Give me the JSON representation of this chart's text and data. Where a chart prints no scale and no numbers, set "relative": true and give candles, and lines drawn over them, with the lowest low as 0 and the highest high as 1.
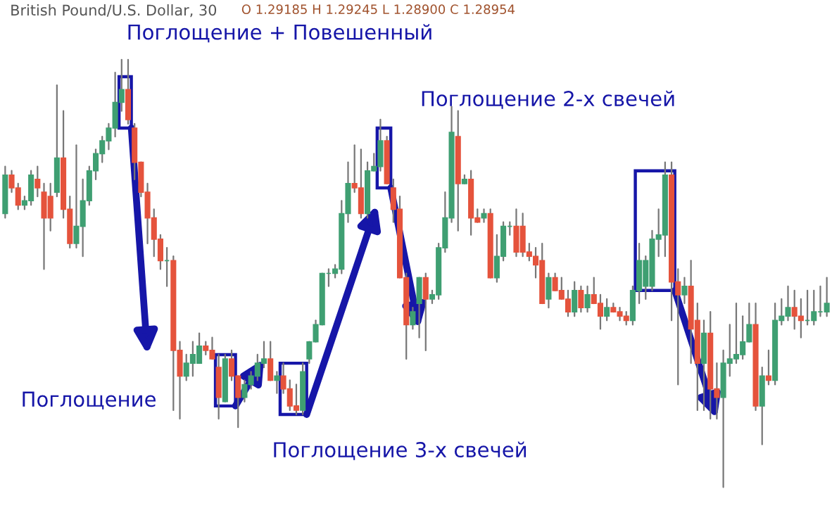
{
  "chart_data": {
    "type": "candlestick",
    "relative": true,
    "title": "British Pound/U.S. Dollar, 30",
    "subtitle": "O 1.29185 H 1.29245 L 1.28900 C 1.28954",
    "annotations": [
      "Поглощение + Повешенный",
      "Поглощение 2-х свечей",
      "Поглощение",
      "Поглощение 3-х свечей"
    ],
    "colors": [
      "#3f9f72",
      "#e5533c",
      "#e5533c",
      "#3f9f72",
      "#3f9f72",
      "#e5533c",
      "#e5533c",
      "#e5533c",
      "#3f9f72",
      "#e5533c",
      "#e5533c",
      "#3f9f72",
      "#3f9f72",
      "#3f9f72",
      "#3f9f72",
      "#3f9f72",
      "#3f9f72",
      "#3f9f72",
      "#3f9f72",
      "#e5533c",
      "#e5533c",
      "#e5533c",
      "#e5533c",
      "#e5533c",
      "#e5533c",
      "#3f9f72",
      "#e5533c",
      "#e5533c",
      "#3f9f72",
      "#3f9f72",
      "#3f9f72",
      "#e5533c",
      "#e5533c",
      "#e5533c",
      "#3f9f72",
      "#e5533c",
      "#e5533c",
      "#3f9f72",
      "#3f9f72",
      "#3f9f72",
      "#3f9f72",
      "#e5533c",
      "#3f9f72",
      "#e5533c",
      "#e5533c",
      "#e5533c",
      "#3f9f72",
      "#3f9f72",
      "#3f9f72",
      "#3f9f72",
      "#3f9f72",
      "#3f9f72",
      "#3f9f72",
      "#3f9f72",
      "#e5533c",
      "#e5533c",
      "#3f9f72",
      "#3f9f72",
      "#3f9f72",
      "#e5533c",
      "#e5533c",
      "#e5533c",
      "#e5533c",
      "#3f9f72",
      "#3f9f72",
      "#e5533c",
      "#3f9f72",
      "#3f9f72",
      "#3f9f72",
      "#3f9f72",
      "#e5533c",
      "#3f9f72",
      "#e5533c",
      "#e5533c",
      "#3f9f72",
      "#e5533c",
      "#3f9f72",
      "#3f9f72",
      "#3f9f72",
      "#e5533c",
      "#e5533c",
      "#e5533c",
      "#e5533c",
      "#e5533c",
      "#3f9f72",
      "#e5533c",
      "#e5533c",
      "#e5533c",
      "#3f9f72",
      "#e5533c",
      "#3f9f72",
      "#e5533c",
      "#e5533c",
      "#3f9f72",
      "#e5533c",
      "#e5533c",
      "#e5533c",
      "#3f9f72",
      "#3f9f72",
      "#3f9f72",
      "#3f9f72",
      "#3f9f72",
      "#3f9f72",
      "#e5533c",
      "#e5533c",
      "#3f9f72",
      "#e5533c",
      "#e5533c",
      "#3f9f72",
      "#e5533c",
      "#e5533c",
      "#3f9f72",
      "#3f9f72",
      "#3f9f72",
      "#3f9f72",
      "#3f9f72",
      "#e5533c",
      "#3f9f72",
      "#e5533c",
      "#3f9f72",
      "#3f9f72",
      "#3f9f72",
      "#e5533c",
      "#e5533c",
      "#3f9f72",
      "#3f9f72",
      "#3f9f72",
      "#3f9f72"
    ],
    "categories": [
      null,
      null,
      null,
      null,
      null,
      null,
      null,
      null,
      null,
      null,
      null,
      null,
      null,
      null,
      null,
      null,
      null,
      null,
      null,
      null,
      null,
      null,
      null,
      null,
      null,
      null,
      null,
      null,
      null,
      null,
      null,
      null,
      null,
      null,
      null,
      null,
      null,
      null,
      null,
      null,
      null,
      null,
      null,
      null,
      null,
      null,
      null,
      null,
      null,
      null,
      null,
      null,
      null,
      null,
      null,
      null,
      null,
      null,
      null,
      null,
      null,
      null,
      null,
      null,
      null,
      null,
      null,
      null,
      null,
      null,
      null,
      null,
      null,
      null,
      null,
      null,
      null,
      null,
      null,
      null,
      null,
      null,
      null,
      null,
      null,
      null,
      null,
      null,
      null,
      null,
      null,
      null,
      null,
      null,
      null,
      null,
      null,
      null,
      null,
      null,
      null,
      null,
      null,
      null,
      null,
      null,
      null,
      null,
      null,
      null,
      null,
      null,
      null,
      null,
      null,
      null,
      null,
      null,
      null,
      null,
      null,
      null,
      null,
      null,
      null,
      null,
      null,
      null
    ],
    "ohlc": [
      [
        0.64,
        0.75,
        0.63,
        0.73
      ],
      [
        0.73,
        0.74,
        0.69,
        0.7
      ],
      [
        0.7,
        0.71,
        0.65,
        0.66
      ],
      [
        0.66,
        0.68,
        0.65,
        0.67
      ],
      [
        0.67,
        0.74,
        0.66,
        0.73
      ],
      [
        0.72,
        0.75,
        0.68,
        0.7
      ],
      [
        0.69,
        0.71,
        0.51,
        0.63
      ],
      [
        0.68,
        0.71,
        0.6,
        0.63
      ],
      [
        0.69,
        0.94,
        0.68,
        0.77
      ],
      [
        0.77,
        0.88,
        0.63,
        0.65
      ],
      [
        0.65,
        0.68,
        0.56,
        0.57
      ],
      [
        0.57,
        0.8,
        0.56,
        0.61
      ],
      [
        0.61,
        0.72,
        0.54,
        0.67
      ],
      [
        0.67,
        0.75,
        0.66,
        0.74
      ],
      [
        0.74,
        0.79,
        0.72,
        0.78
      ],
      [
        0.78,
        0.82,
        0.76,
        0.81
      ],
      [
        0.81,
        0.85,
        0.79,
        0.84
      ],
      [
        0.84,
        0.97,
        0.82,
        0.9
      ],
      [
        0.9,
        1,
        0.88,
        0.93
      ],
      [
        0.93,
        1,
        0.85,
        0.86
      ],
      [
        0.84,
        0.85,
        0.72,
        0.76
      ],
      [
        0.76,
        0.76,
        0.68,
        0.69
      ],
      [
        0.69,
        0.71,
        0.57,
        0.63
      ],
      [
        0.63,
        0.65,
        0.54,
        0.58
      ],
      [
        0.58,
        0.59,
        0.51,
        0.53
      ],
      [
        0.53,
        0.56,
        0.47,
        0.53
      ],
      [
        0.53,
        0.54,
        0.18,
        0.32
      ],
      [
        0.32,
        0.34,
        0.16,
        0.26
      ],
      [
        0.26,
        0.31,
        0.25,
        0.29
      ],
      [
        0.29,
        0.34,
        0.26,
        0.31
      ],
      [
        0.29,
        0.36,
        0.29,
        0.33
      ],
      [
        0.33,
        0.34,
        0.31,
        0.32
      ],
      [
        0.32,
        0.35,
        0.3,
        0.3
      ],
      [
        0.28,
        0.31,
        0.16,
        0.21
      ],
      [
        0.2,
        0.31,
        0.2,
        0.3
      ],
      [
        0.3,
        0.32,
        0.25,
        0.26
      ],
      [
        0.26,
        0.26,
        0.14,
        0.21
      ],
      [
        0.21,
        0.25,
        0.2,
        0.24
      ],
      [
        0.24,
        0.27,
        0.23,
        0.26
      ],
      [
        0.26,
        0.31,
        0.25,
        0.29
      ],
      [
        0.29,
        0.34,
        0.28,
        0.3
      ],
      [
        0.3,
        0.34,
        0.25,
        0.25
      ],
      [
        0.25,
        0.27,
        0.22,
        0.26
      ],
      [
        0.26,
        0.29,
        0.22,
        0.23
      ],
      [
        0.23,
        0.25,
        0.18,
        0.19
      ],
      [
        0.19,
        0.24,
        0.17,
        0.18
      ],
      [
        0.18,
        0.29,
        0.17,
        0.27
      ],
      [
        0.3,
        0.34,
        0.29,
        0.34
      ],
      [
        0.34,
        0.39,
        0.34,
        0.38
      ],
      [
        0.38,
        0.5,
        0.38,
        0.5
      ],
      [
        0.5,
        0.51,
        0.47,
        0.5
      ],
      [
        0.5,
        0.52,
        0.49,
        0.51
      ],
      [
        0.51,
        0.67,
        0.5,
        0.64
      ],
      [
        0.64,
        0.76,
        0.62,
        0.71
      ],
      [
        0.71,
        0.8,
        0.69,
        0.7
      ],
      [
        0.7,
        0.79,
        0.63,
        0.64
      ],
      [
        0.64,
        0.76,
        0.63,
        0.74
      ],
      [
        0.74,
        0.78,
        0.74,
        0.75
      ],
      [
        0.75,
        0.86,
        0.74,
        0.81
      ],
      [
        0.81,
        0.82,
        0.71,
        0.71
      ],
      [
        0.7,
        0.72,
        0.62,
        0.65
      ],
      [
        0.65,
        0.68,
        0.49,
        0.49
      ],
      [
        0.49,
        0.5,
        0.3,
        0.38
      ],
      [
        0.38,
        0.42,
        0.37,
        0.41
      ],
      [
        0.43,
        0.49,
        0.35,
        0.49
      ],
      [
        0.49,
        0.5,
        0.32,
        0.44
      ],
      [
        0.44,
        0.46,
        0.43,
        0.45
      ],
      [
        0.45,
        0.57,
        0.44,
        0.56
      ],
      [
        0.56,
        0.69,
        0.55,
        0.63
      ],
      [
        0.63,
        0.89,
        0.62,
        0.83
      ],
      [
        0.82,
        0.88,
        0.6,
        0.71
      ],
      [
        0.71,
        0.73,
        0.71,
        0.72
      ],
      [
        0.72,
        0.74,
        0.59,
        0.63
      ],
      [
        0.63,
        0.65,
        0.62,
        0.62
      ],
      [
        0.63,
        0.65,
        0.62,
        0.64
      ],
      [
        0.64,
        0.65,
        0.49,
        0.49
      ],
      [
        0.49,
        0.59,
        0.48,
        0.54
      ],
      [
        0.54,
        0.62,
        0.53,
        0.61
      ],
      [
        0.61,
        0.62,
        0.59,
        0.61
      ],
      [
        0.61,
        0.65,
        0.54,
        0.55
      ],
      [
        0.61,
        0.64,
        0.54,
        0.55
      ],
      [
        0.55,
        0.57,
        0.53,
        0.54
      ],
      [
        0.54,
        0.56,
        0.49,
        0.52
      ],
      [
        0.53,
        0.57,
        0.43,
        0.43
      ],
      [
        0.44,
        0.5,
        0.42,
        0.49
      ],
      [
        0.49,
        0.5,
        0.46,
        0.46
      ],
      [
        0.46,
        0.49,
        0.44,
        0.44
      ],
      [
        0.44,
        0.46,
        0.4,
        0.41
      ],
      [
        0.41,
        0.48,
        0.4,
        0.46
      ],
      [
        0.46,
        0.47,
        0.41,
        0.42
      ],
      [
        0.42,
        0.47,
        0.41,
        0.45
      ],
      [
        0.45,
        0.49,
        0.43,
        0.43
      ],
      [
        0.43,
        0.45,
        0.37,
        0.4
      ],
      [
        0.4,
        0.44,
        0.39,
        0.42
      ],
      [
        0.42,
        0.43,
        0.41,
        0.41
      ],
      [
        0.41,
        0.42,
        0.39,
        0.4
      ],
      [
        0.4,
        0.41,
        0.38,
        0.39
      ],
      [
        0.39,
        0.47,
        0.38,
        0.46
      ],
      [
        0.46,
        0.57,
        0.43,
        0.53
      ],
      [
        0.47,
        0.54,
        0.44,
        0.53
      ],
      [
        0.47,
        0.6,
        0.46,
        0.58
      ],
      [
        0.58,
        0.65,
        0.54,
        0.59
      ],
      [
        0.59,
        0.76,
        0.54,
        0.73
      ],
      [
        0.73,
        0.76,
        0.39,
        0.48
      ],
      [
        0.48,
        0.51,
        0.24,
        0.45
      ],
      [
        0.45,
        0.49,
        0.43,
        0.47
      ],
      [
        0.47,
        0.53,
        0.29,
        0.37
      ],
      [
        0.39,
        0.43,
        0.18,
        0.29
      ],
      [
        0.29,
        0.39,
        0.18,
        0.36
      ],
      [
        0.36,
        0.41,
        0.16,
        0.23
      ],
      [
        0.23,
        0.29,
        0.16,
        0.21
      ],
      [
        0.21,
        0.32,
        0,
        0.29
      ],
      [
        0.29,
        0.38,
        0.26,
        0.3
      ],
      [
        0.3,
        0.43,
        0.29,
        0.31
      ],
      [
        0.31,
        0.4,
        0.3,
        0.34
      ],
      [
        0.34,
        0.43,
        0.34,
        0.38
      ],
      [
        0.38,
        0.43,
        0.18,
        0.19
      ],
      [
        0.19,
        0.28,
        0.1,
        0.26
      ],
      [
        0.26,
        0.32,
        0.24,
        0.25
      ],
      [
        0.25,
        0.43,
        0.24,
        0.39
      ],
      [
        0.39,
        0.44,
        0.38,
        0.4
      ],
      [
        0.4,
        0.47,
        0.39,
        0.42
      ],
      [
        0.42,
        0.46,
        0.37,
        0.4
      ],
      [
        0.4,
        0.44,
        0.35,
        0.39
      ],
      [
        0.39,
        0.46,
        0.38,
        0.39
      ],
      [
        0.39,
        0.46,
        0.38,
        0.41
      ],
      [
        0.41,
        0.47,
        0.4,
        0.41
      ],
      [
        0.41,
        0.49,
        0.4,
        0.43
      ]
    ]
  }
}
